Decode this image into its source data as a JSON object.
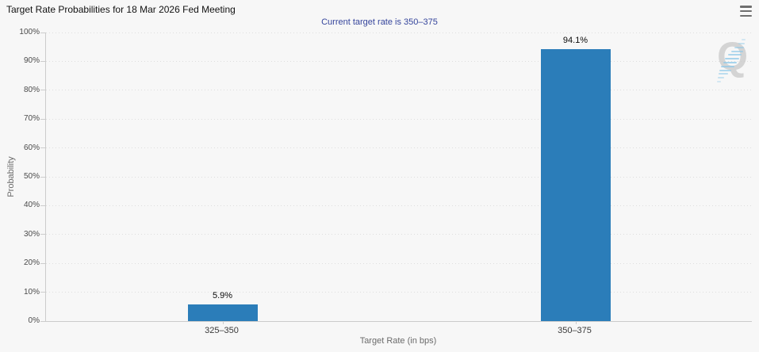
{
  "header": {
    "menu_icon": "hamburger-icon"
  },
  "chart_data": {
    "type": "bar",
    "title": "Target Rate Probabilities for 18 Mar 2026 Fed Meeting",
    "subtitle": "Current target rate is 350–375",
    "categories": [
      "325–350",
      "350–375"
    ],
    "values": [
      5.9,
      94.1
    ],
    "value_labels": [
      "5.9%",
      "94.1%"
    ],
    "xlabel": "Target Rate (in bps)",
    "ylabel": "Probability",
    "ylim": [
      0,
      100
    ],
    "ytick_step": 10,
    "ytick_labels": [
      "0%",
      "10%",
      "20%",
      "30%",
      "40%",
      "50%",
      "60%",
      "70%",
      "80%",
      "90%",
      "100%"
    ],
    "grid": "horizontal-dotted",
    "legend_position": "none"
  },
  "colors": {
    "background": "#f7f7f7",
    "bar": "#2b7db9",
    "subtitle_text": "#35459c",
    "axis_line": "#cccccc",
    "gridline": "#dedede",
    "watermark_gray": "#c9c9c9",
    "watermark_blue": "#8ec8e8"
  },
  "watermark": {
    "letter": "Q"
  }
}
